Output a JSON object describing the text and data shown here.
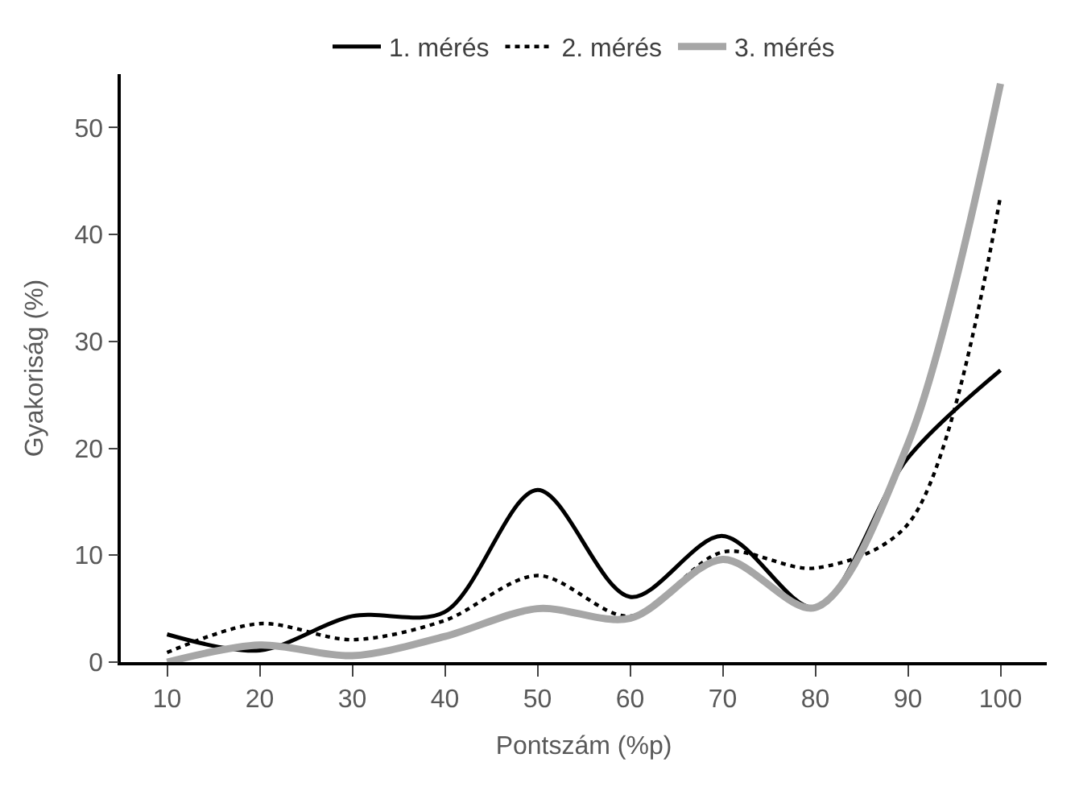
{
  "chart_data": {
    "type": "line",
    "xlabel": "Pontszám (%p)",
    "ylabel": "Gyakoriság (%)",
    "categories": [
      "10",
      "20",
      "30",
      "40",
      "50",
      "60",
      "70",
      "80",
      "90",
      "100"
    ],
    "ylim": [
      0,
      55
    ],
    "yticks": [
      0,
      10,
      20,
      30,
      40,
      50
    ],
    "legend": "top",
    "marker": "none",
    "series": [
      {
        "name": "1. mérés",
        "color": "#000000",
        "line_style": "solid",
        "values": [
          2.6,
          1.1,
          4.3,
          4.7,
          16.1,
          6.1,
          11.8,
          5.1,
          19.1,
          27.3
        ]
      },
      {
        "name": "2. mérés",
        "color": "#000000",
        "line_style": "dotted",
        "values": [
          0.9,
          3.6,
          2.1,
          3.9,
          8.1,
          4.3,
          10.3,
          8.8,
          12.9,
          43.6
        ]
      },
      {
        "name": "3. mérés",
        "color": "#a6a6a6",
        "line_style": "solid",
        "values": [
          0.0,
          1.6,
          0.6,
          2.4,
          5.0,
          4.1,
          9.6,
          5.1,
          20.4,
          54.1
        ]
      }
    ]
  }
}
